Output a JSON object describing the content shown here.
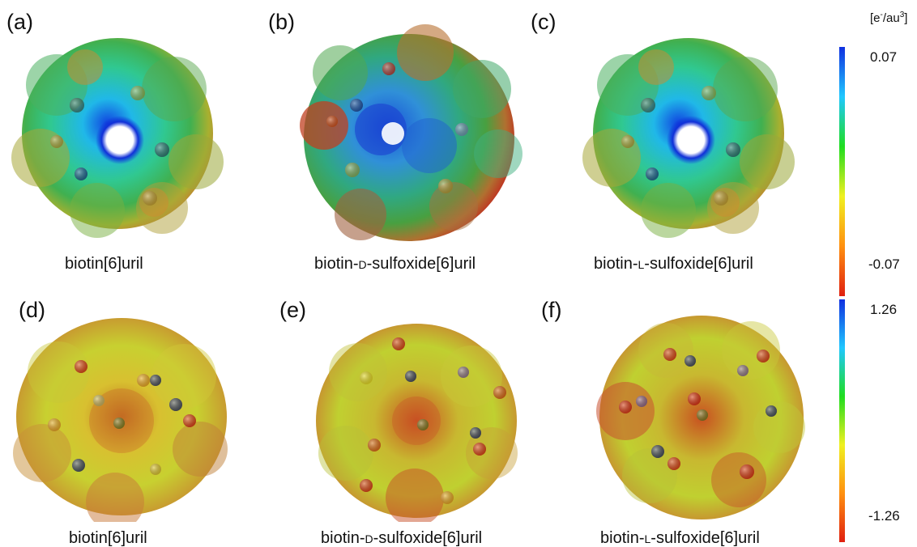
{
  "colorbar_unit": {
    "open": "[e",
    "sup1": "-",
    "mid": "/au",
    "sup2": "3",
    "close": "]"
  },
  "colorbar_top": {
    "max_label": "0.07",
    "min_label": "-0.07",
    "max_value": 0.07,
    "min_value": -0.07,
    "colors": [
      "#1030e0",
      "#20c8ff",
      "#20dd20",
      "#f0f020",
      "#ff9010",
      "#e02010"
    ]
  },
  "colorbar_bottom": {
    "max_label": "1.26",
    "min_label": "-1.26",
    "max_value": 1.26,
    "min_value": -1.26,
    "colors": [
      "#1030e0",
      "#20c8ff",
      "#20dd20",
      "#f0f020",
      "#ff9010",
      "#e02010"
    ]
  },
  "panels": [
    {
      "label": "(a)",
      "caption_pre": "biotin[6]uril",
      "caption_sc": "",
      "caption_post": ""
    },
    {
      "label": "(b)",
      "caption_pre": "biotin-",
      "caption_sc": "d",
      "caption_post": "-sulfoxide[6]uril"
    },
    {
      "label": "(c)",
      "caption_pre": "biotin-",
      "caption_sc": "l",
      "caption_post": "-sulfoxide[6]uril"
    },
    {
      "label": "(d)",
      "caption_pre": "biotin[6]uril",
      "caption_sc": "",
      "caption_post": ""
    },
    {
      "label": "(e)",
      "caption_pre": "biotin-",
      "caption_sc": "d",
      "caption_post": "-sulfoxide[6]uril"
    },
    {
      "label": "(f)",
      "caption_pre": "biotin-",
      "caption_sc": "l",
      "caption_post": "-sulfoxide[6]uril"
    }
  ]
}
